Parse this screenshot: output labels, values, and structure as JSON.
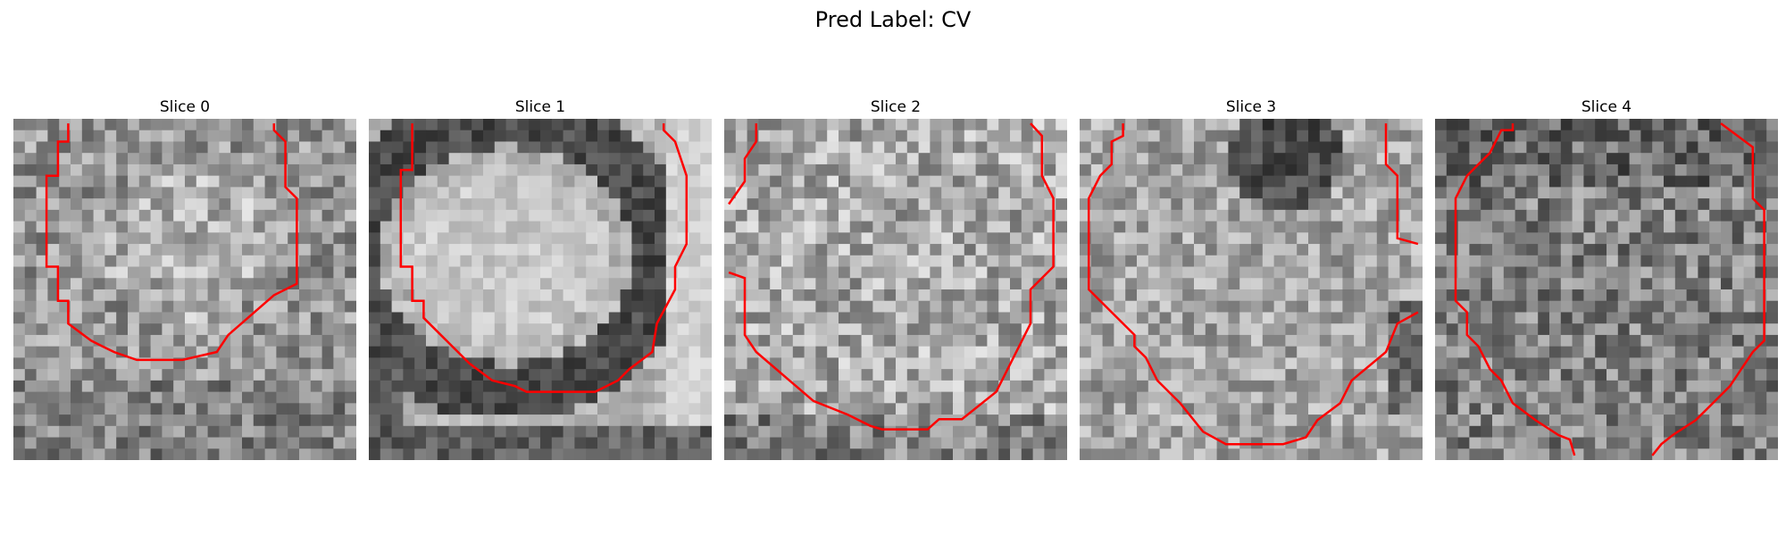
{
  "figure": {
    "title": "Pred Label: CV"
  },
  "slices": [
    {
      "title": "Slice 0",
      "seed": 11,
      "style": "noisy-ring-faint"
    },
    {
      "title": "Slice 1",
      "seed": 23,
      "style": "dark-ring"
    },
    {
      "title": "Slice 2",
      "seed": 37,
      "style": "noisy-bright"
    },
    {
      "title": "Slice 3",
      "seed": 41,
      "style": "ring-top-dark"
    },
    {
      "title": "Slice 4",
      "seed": 53,
      "style": "noisy-dark"
    }
  ],
  "colors": {
    "contour": "#ff0000",
    "background": "#ffffff"
  }
}
